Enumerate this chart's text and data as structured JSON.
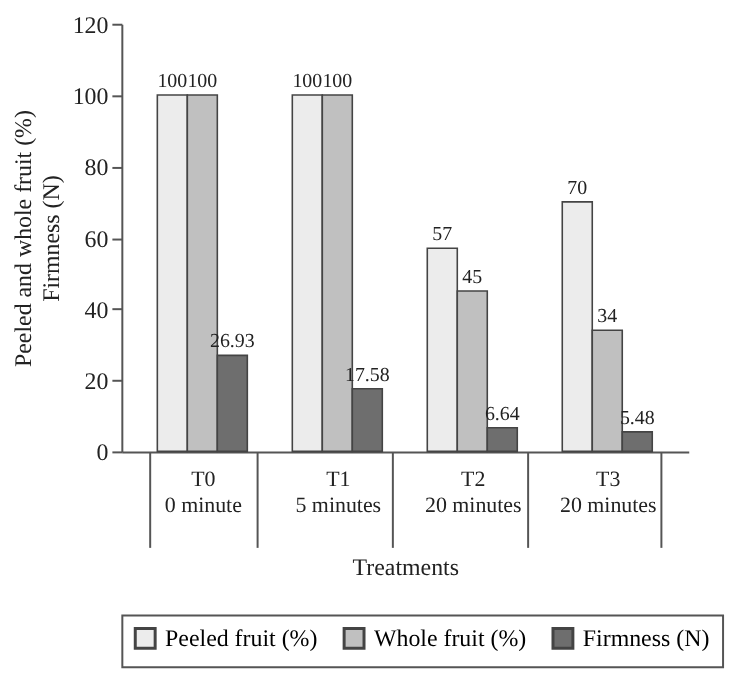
{
  "chart_data": {
    "type": "bar",
    "xlabel": "Treatments",
    "ylabel": "Peeled and whole fruit (%)\nFirmness (N)",
    "categories": [
      "T0\n0 minute",
      "T1\n5 minutes",
      "T2\n20 minutes",
      "T3\n20 minutes"
    ],
    "series": [
      {
        "name": "Peeled fruit (%)",
        "color": "#ececec",
        "values": [
          100,
          100,
          57,
          70
        ]
      },
      {
        "name": "Whole fruit (%)",
        "color": "#c0c0c0",
        "values": [
          100,
          100,
          45,
          34
        ]
      },
      {
        "name": "Firmness (N)",
        "color": "#6e6e6e",
        "values": [
          26.93,
          17.58,
          6.64,
          5.48
        ]
      }
    ],
    "ylim": [
      0,
      120
    ],
    "yticks": [
      0,
      20,
      40,
      60,
      80,
      100,
      120
    ],
    "data_labels": true,
    "grid": false,
    "legend": "bottom"
  }
}
